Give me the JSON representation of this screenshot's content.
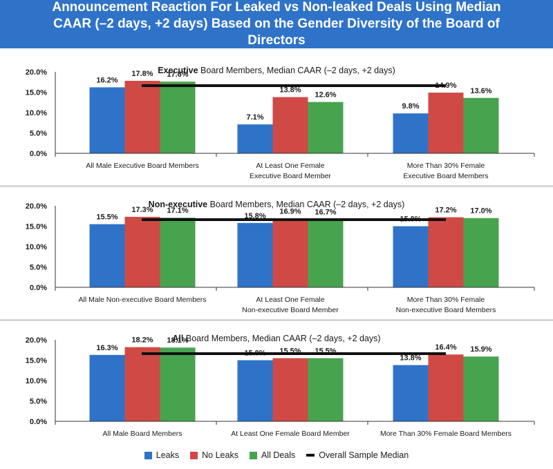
{
  "header": {
    "title": "Announcement Reaction For Leaked vs Non-leaked Deals Using Median CAAR (–2 days, +2 days) Based on the Gender Diversity of the Board of Directors"
  },
  "colors": {
    "header_bg": "#2f73c8",
    "leaks": "#2f73c8",
    "no_leaks": "#d04a45",
    "all_deals": "#48a34f",
    "median_line": "#111111"
  },
  "legend": {
    "leaks": "Leaks",
    "no_leaks": "No Leaks",
    "all_deals": "All Deals",
    "median": "Overall Sample Median"
  },
  "chart_data": [
    {
      "type": "bar",
      "title_bold": "Executive",
      "title_rest": " Board Members, Median CAAR (–2 days, +2 days)",
      "categories": [
        [
          "All Male Executive Board Members"
        ],
        [
          "At Least One Female",
          "Executive Board Member"
        ],
        [
          "More Than 30% Female",
          "Executive Board Members"
        ]
      ],
      "series": [
        {
          "name": "Leaks",
          "values": [
            16.2,
            7.1,
            9.8
          ],
          "labels": [
            "16.2%",
            "7.1%",
            "9.8%"
          ]
        },
        {
          "name": "No Leaks",
          "values": [
            17.8,
            13.8,
            14.9
          ],
          "labels": [
            "17.8%",
            "13.8%",
            "14.9%"
          ]
        },
        {
          "name": "All Deals",
          "values": [
            17.6,
            12.6,
            13.6
          ],
          "labels": [
            "17.6%",
            "12.6%",
            "13.6%"
          ]
        }
      ],
      "median": 16.6,
      "yticks": [
        "0.0%",
        "5.0%",
        "10.0%",
        "15.0%",
        "20.0%"
      ],
      "ylim": [
        0,
        20
      ]
    },
    {
      "type": "bar",
      "title_bold": "Non-executive",
      "title_rest": " Board Members, Median CAAR (–2 days, +2 days)",
      "categories": [
        [
          "All Male Non-executive Board Members"
        ],
        [
          "At Least One Female",
          "Non-executive Board Member"
        ],
        [
          "More Than 30% Female",
          "Non-executive Board Members"
        ]
      ],
      "series": [
        {
          "name": "Leaks",
          "values": [
            15.5,
            15.8,
            15.0
          ],
          "labels": [
            "15.5%",
            "15.8%",
            "15.0%"
          ]
        },
        {
          "name": "No Leaks",
          "values": [
            17.3,
            16.9,
            17.2
          ],
          "labels": [
            "17.3%",
            "16.9%",
            "17.2%"
          ]
        },
        {
          "name": "All Deals",
          "values": [
            17.1,
            16.7,
            17.0
          ],
          "labels": [
            "17.1%",
            "16.7%",
            "17.0%"
          ]
        }
      ],
      "median": 16.6,
      "yticks": [
        "0.0%",
        "5.0%",
        "10.0%",
        "15.0%",
        "20.0%"
      ],
      "ylim": [
        0,
        20
      ]
    },
    {
      "type": "bar",
      "title_bold": "All",
      "title_rest": " Board Members, Median CAAR (–2 days, +2 days)",
      "categories": [
        [
          "All Male Board Members"
        ],
        [
          "At Least One Female Board Member"
        ],
        [
          "More Than 30% Female Board Members"
        ]
      ],
      "series": [
        {
          "name": "Leaks",
          "values": [
            16.3,
            15.0,
            13.8
          ],
          "labels": [
            "16.3%",
            "15.0%",
            "13.8%"
          ]
        },
        {
          "name": "No Leaks",
          "values": [
            18.2,
            15.5,
            16.4
          ],
          "labels": [
            "18.2%",
            "15.5%",
            "16.4%"
          ]
        },
        {
          "name": "All Deals",
          "values": [
            18.1,
            15.5,
            15.9
          ],
          "labels": [
            "18.1%",
            "15.5%",
            "15.9%"
          ]
        }
      ],
      "median": 16.6,
      "yticks": [
        "0.0%",
        "5.0%",
        "10.0%",
        "15.0%",
        "20.0%"
      ],
      "ylim": [
        0,
        20
      ]
    }
  ]
}
